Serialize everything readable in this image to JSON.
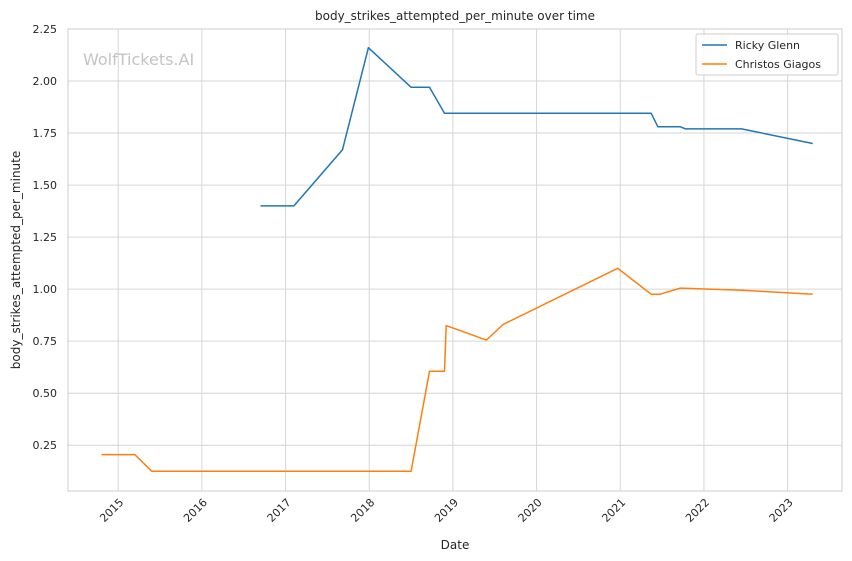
{
  "chart_data": {
    "type": "line",
    "title": "body_strikes_attempted_per_minute over time",
    "xlabel": "Date",
    "ylabel": "body_strikes_attempted_per_minute",
    "watermark": "WolfTickets.AI",
    "x_ticks": [
      "2015",
      "2016",
      "2017",
      "2018",
      "2019",
      "2020",
      "2021",
      "2022",
      "2023"
    ],
    "y_ticks": [
      "0.25",
      "0.50",
      "0.75",
      "1.00",
      "1.25",
      "1.50",
      "1.75",
      "2.00",
      "2.25"
    ],
    "xlim": [
      2014.4,
      2023.65
    ],
    "ylim": [
      0.03,
      2.25
    ],
    "grid": true,
    "legend_position": "top-right",
    "series": [
      {
        "name": "Ricky Glenn",
        "color": "#1f77b4",
        "points": [
          [
            2016.7,
            1.4
          ],
          [
            2017.1,
            1.4
          ],
          [
            2017.68,
            1.67
          ],
          [
            2017.99,
            2.16
          ],
          [
            2018.5,
            1.97
          ],
          [
            2018.72,
            1.97
          ],
          [
            2018.9,
            1.845
          ],
          [
            2021.37,
            1.845
          ],
          [
            2021.45,
            1.78
          ],
          [
            2021.72,
            1.78
          ],
          [
            2021.78,
            1.77
          ],
          [
            2022.45,
            1.77
          ],
          [
            2023.3,
            1.7
          ]
        ]
      },
      {
        "name": "Christos Giagos",
        "color": "#ff7f0e",
        "points": [
          [
            2014.8,
            0.205
          ],
          [
            2015.2,
            0.205
          ],
          [
            2015.4,
            0.125
          ],
          [
            2018.5,
            0.125
          ],
          [
            2018.72,
            0.605
          ],
          [
            2018.9,
            0.605
          ],
          [
            2018.92,
            0.825
          ],
          [
            2019.4,
            0.755
          ],
          [
            2019.6,
            0.83
          ],
          [
            2020.97,
            1.1
          ],
          [
            2021.37,
            0.975
          ],
          [
            2021.47,
            0.975
          ],
          [
            2021.72,
            1.005
          ],
          [
            2022.45,
            0.995
          ],
          [
            2023.3,
            0.975
          ]
        ]
      }
    ]
  }
}
